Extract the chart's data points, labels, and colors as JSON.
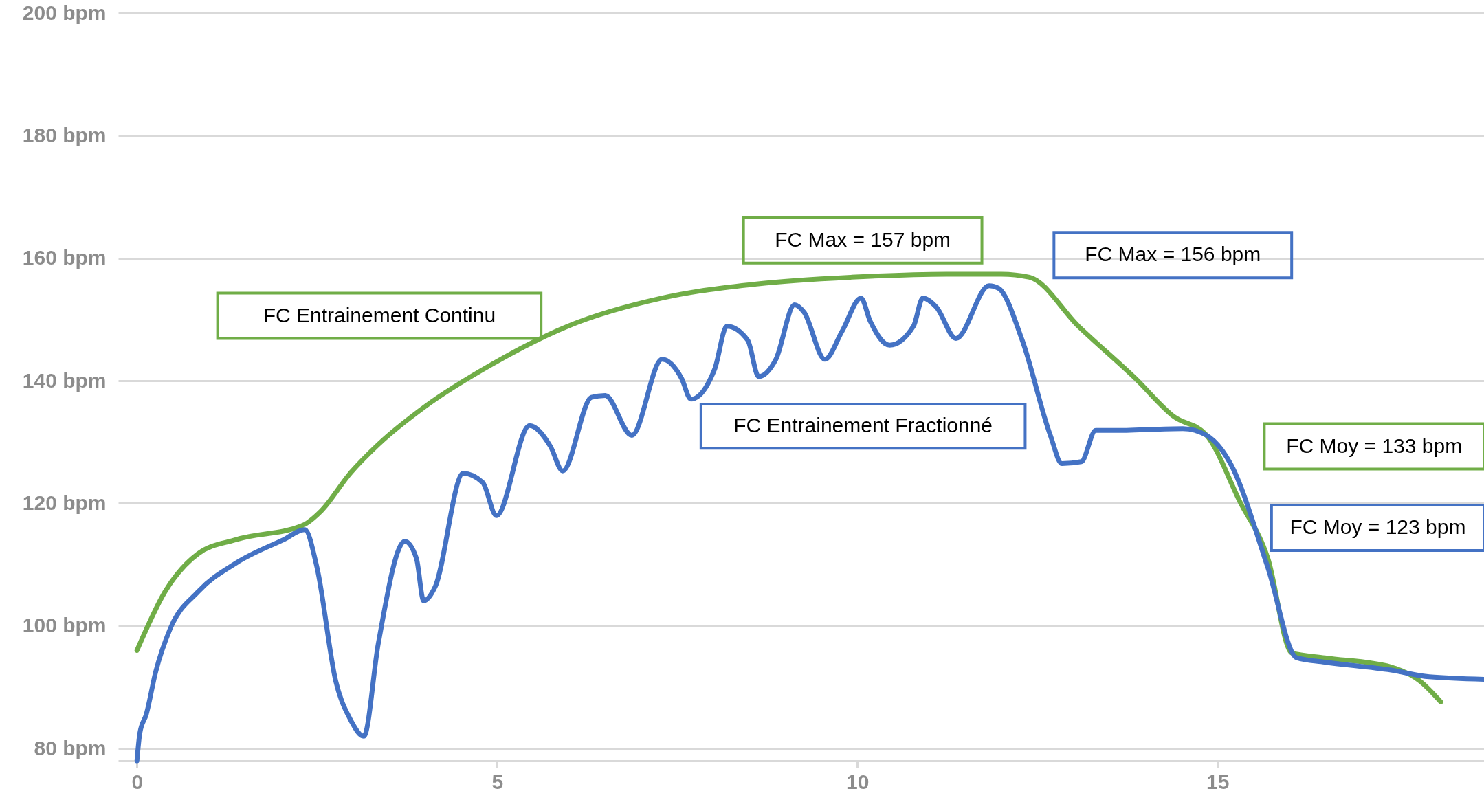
{
  "chart_data": {
    "type": "line",
    "xlim": [
      -0.26,
      18.7
    ],
    "xticks": [
      0,
      5,
      10,
      15
    ],
    "ylim": [
      78,
      200
    ],
    "yticks": [
      {
        "value": 80,
        "label": "80 bpm"
      },
      {
        "value": 100,
        "label": "100 bpm"
      },
      {
        "value": 120,
        "label": "120 bpm"
      },
      {
        "value": 140,
        "label": "140 bpm"
      },
      {
        "value": 160,
        "label": "160 bpm"
      },
      {
        "value": 180,
        "label": "180 bpm"
      },
      {
        "value": 200,
        "label": "200 bpm"
      }
    ],
    "grid": "y",
    "line_style": "solid",
    "marker": "none",
    "series": [
      {
        "name": "FC Entrainement Continu",
        "color": "#70ad47",
        "x": [
          0,
          0.39,
          0.85,
          1.38,
          2.3,
          2.56,
          2.96,
          3.35,
          4.0,
          4.93,
          5.98,
          7.29,
          8.6,
          9.92,
          11.24,
          12.0,
          12.39,
          13.07,
          13.86,
          14.39,
          14.85,
          15.31,
          15.7,
          16.03,
          16.49,
          17.41,
          17.81,
          18.1
        ],
        "values": [
          96,
          105.6,
          111.8,
          114.1,
          116.4,
          118.8,
          124.9,
          129.6,
          135.8,
          142.7,
          148.9,
          153.5,
          155.8,
          156.9,
          157.4,
          157.4,
          156.9,
          148.9,
          140.4,
          134.2,
          131.1,
          120.3,
          111,
          95.6,
          94.8,
          93.3,
          91,
          87.6
        ]
      },
      {
        "name": "FC Entrainement Fractionné",
        "color": "#4472c4",
        "x": [
          0,
          0.04,
          0.13,
          0.26,
          0.46,
          0.85,
          1.38,
          2.04,
          2.33,
          2.5,
          2.76,
          2.96,
          3.15,
          3.35,
          3.72,
          3.88,
          3.98,
          4.14,
          4.53,
          4.8,
          4.99,
          5.45,
          5.74,
          5.91,
          6.31,
          6.5,
          6.87,
          7.29,
          7.56,
          7.69,
          8.02,
          8.19,
          8.48,
          8.63,
          8.87,
          9.13,
          9.26,
          9.55,
          9.79,
          10.05,
          10.18,
          10.45,
          10.78,
          10.91,
          11.1,
          11.37,
          11.83,
          11.96,
          12.29,
          12.68,
          12.84,
          13.11,
          13.31,
          13.6,
          14.52,
          14.85,
          15.18,
          15.7,
          16.1,
          16.49,
          17.41,
          17.94,
          18.7
        ],
        "values": [
          78,
          82.5,
          85.6,
          92.5,
          99.5,
          105.6,
          110.3,
          114.1,
          115.7,
          109.5,
          91,
          84.8,
          82,
          97.1,
          113.8,
          111,
          104.1,
          106.4,
          124.9,
          123.4,
          118,
          132.7,
          129.3,
          125.3,
          137.3,
          137.6,
          131.1,
          143.5,
          140.4,
          137,
          141.9,
          148.9,
          146.6,
          140.7,
          143.5,
          152.4,
          151.2,
          143.5,
          148.1,
          153.5,
          149.7,
          145.8,
          148.9,
          153.5,
          152,
          146.9,
          155.5,
          155.1,
          146.6,
          131.1,
          126.5,
          126.8,
          131.9,
          131.9,
          132.2,
          131.1,
          126.5,
          109.5,
          94.8,
          94.1,
          92.8,
          91.7,
          91.3
        ]
      }
    ],
    "annotations": [
      "FC Max = 157 bpm",
      "FC Max = 156 bpm",
      "FC Moy = 133 bpm",
      "FC Moy = 123 bpm"
    ]
  }
}
